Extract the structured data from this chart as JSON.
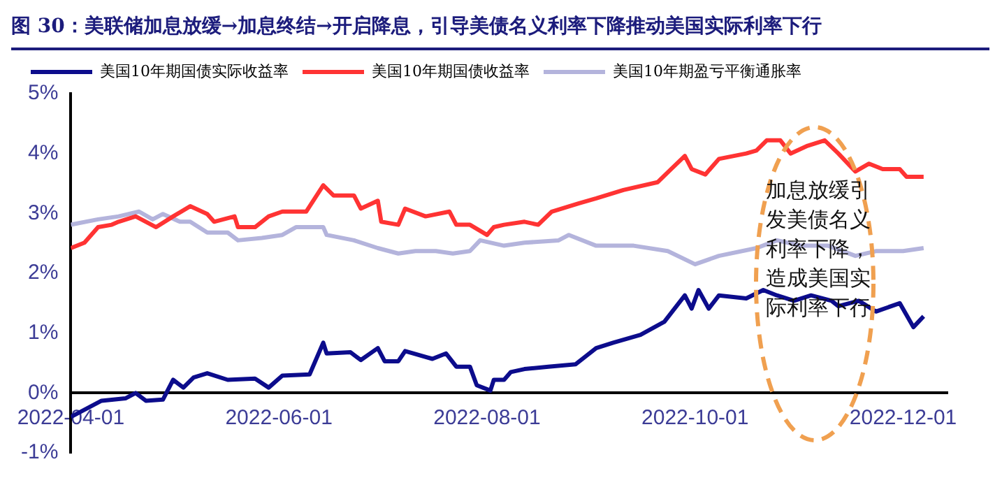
{
  "chart_data": {
    "type": "line",
    "title": "图 30：美联储加息放缓→加息终结→开启降息，引导美债名义利率下降推动美国实际利率下行",
    "xlim": [
      "2022-04-01",
      "2022-12-14"
    ],
    "xticks": [
      "2022-04-01",
      "2022-06-01",
      "2022-08-01",
      "2022-10-01",
      "2022-12-01"
    ],
    "ylim": [
      -1,
      5
    ],
    "yticks": [
      {
        "value": -1,
        "label": "-1%"
      },
      {
        "value": 0,
        "label": "0%"
      },
      {
        "value": 1,
        "label": "1%"
      },
      {
        "value": 2,
        "label": "2%"
      },
      {
        "value": 3,
        "label": "3%"
      },
      {
        "value": 4,
        "label": "4%"
      },
      {
        "value": 5,
        "label": "5%"
      }
    ],
    "grid": false,
    "legend": "top left",
    "marker": "none",
    "line_style": "solid",
    "annotations": [
      "加息放缓引发美债名义利率下降，造成美国实际利率下行"
    ],
    "series": [
      {
        "name": "美国10年期国债实际收益率",
        "color": "#0c0c8c",
        "x": [
          "2022-04-01",
          "2022-04-07",
          "2022-04-10",
          "2022-04-17",
          "2022-04-20",
          "2022-04-23",
          "2022-04-28",
          "2022-05-01",
          "2022-05-04",
          "2022-05-07",
          "2022-05-11",
          "2022-05-17",
          "2022-05-25",
          "2022-05-29",
          "2022-06-02",
          "2022-06-10",
          "2022-06-14",
          "2022-06-15",
          "2022-06-22",
          "2022-06-25",
          "2022-06-30",
          "2022-07-02",
          "2022-07-06",
          "2022-07-08",
          "2022-07-16",
          "2022-07-20",
          "2022-07-23",
          "2022-07-27",
          "2022-07-29",
          "2022-08-02",
          "2022-08-03",
          "2022-08-06",
          "2022-08-08",
          "2022-08-12",
          "2022-08-19",
          "2022-08-27",
          "2022-09-02",
          "2022-09-07",
          "2022-09-15",
          "2022-09-22",
          "2022-09-28",
          "2022-09-30",
          "2022-10-02",
          "2022-10-05",
          "2022-10-08",
          "2022-10-16",
          "2022-10-21",
          "2022-10-25",
          "2022-10-30",
          "2022-11-04",
          "2022-11-10",
          "2022-11-12",
          "2022-11-18",
          "2022-11-23",
          "2022-11-30",
          "2022-12-04",
          "2022-12-07"
        ],
        "values": [
          -0.4,
          -0.22,
          -0.13,
          -0.09,
          0,
          -0.13,
          -0.11,
          0.22,
          0.09,
          0.26,
          0.33,
          0.22,
          0.24,
          0.09,
          0.29,
          0.31,
          0.84,
          0.66,
          0.68,
          0.55,
          0.75,
          0.53,
          0.53,
          0.7,
          0.57,
          0.66,
          0.44,
          0.44,
          0.13,
          0.04,
          0.22,
          0.22,
          0.35,
          0.4,
          0.44,
          0.48,
          0.75,
          0.84,
          0.97,
          1.19,
          1.63,
          1.41,
          1.72,
          1.41,
          1.63,
          1.58,
          1.72,
          1.63,
          1.54,
          1.63,
          1.54,
          1.45,
          1.54,
          1.36,
          1.5,
          1.1,
          1.28
        ]
      },
      {
        "name": "美国10年期国债收益率",
        "color": "#ff3333",
        "x": [
          "2022-04-01",
          "2022-04-05",
          "2022-04-09",
          "2022-04-13",
          "2022-04-15",
          "2022-04-20",
          "2022-04-26",
          "2022-05-01",
          "2022-05-06",
          "2022-05-11",
          "2022-05-13",
          "2022-05-19",
          "2022-05-20",
          "2022-05-25",
          "2022-05-29",
          "2022-06-02",
          "2022-06-09",
          "2022-06-14",
          "2022-06-17",
          "2022-06-23",
          "2022-06-25",
          "2022-06-30",
          "2022-07-01",
          "2022-07-06",
          "2022-07-08",
          "2022-07-14",
          "2022-07-21",
          "2022-07-23",
          "2022-07-27",
          "2022-08-01",
          "2022-08-03",
          "2022-08-06",
          "2022-08-12",
          "2022-08-16",
          "2022-08-20",
          "2022-08-28",
          "2022-09-02",
          "2022-09-10",
          "2022-09-20",
          "2022-09-24",
          "2022-09-28",
          "2022-09-30",
          "2022-10-04",
          "2022-10-08",
          "2022-10-16",
          "2022-10-19",
          "2022-10-22",
          "2022-10-26",
          "2022-10-29",
          "2022-11-03",
          "2022-11-08",
          "2022-11-12",
          "2022-11-17",
          "2022-11-21",
          "2022-11-25",
          "2022-11-30",
          "2022-12-02",
          "2022-12-07"
        ],
        "values": [
          2.42,
          2.51,
          2.77,
          2.81,
          2.86,
          2.95,
          2.77,
          2.95,
          3.12,
          2.99,
          2.86,
          2.95,
          2.77,
          2.77,
          2.95,
          3.03,
          3.03,
          3.47,
          3.3,
          3.3,
          3.08,
          3.21,
          2.86,
          2.81,
          3.08,
          2.95,
          3.03,
          2.81,
          2.81,
          2.64,
          2.77,
          2.81,
          2.86,
          2.81,
          3.03,
          3.17,
          3.25,
          3.39,
          3.52,
          3.74,
          3.96,
          3.74,
          3.65,
          3.91,
          4.0,
          4.05,
          4.22,
          4.22,
          4.0,
          4.13,
          4.22,
          4.0,
          3.7,
          3.83,
          3.74,
          3.74,
          3.61,
          3.61
        ]
      },
      {
        "name": "美国10年期盈亏平衡通胀率",
        "color": "#b4b4dc",
        "x": [
          "2022-04-01",
          "2022-04-09",
          "2022-04-15",
          "2022-04-21",
          "2022-04-25",
          "2022-04-28",
          "2022-05-03",
          "2022-05-06",
          "2022-05-11",
          "2022-05-17",
          "2022-05-20",
          "2022-05-27",
          "2022-06-02",
          "2022-06-06",
          "2022-06-14",
          "2022-06-15",
          "2022-06-23",
          "2022-06-30",
          "2022-07-06",
          "2022-07-11",
          "2022-07-17",
          "2022-07-22",
          "2022-07-27",
          "2022-07-30",
          "2022-08-06",
          "2022-08-12",
          "2022-08-22",
          "2022-08-25",
          "2022-09-02",
          "2022-09-13",
          "2022-09-23",
          "2022-10-01",
          "2022-10-08",
          "2022-10-19",
          "2022-10-25",
          "2022-11-01",
          "2022-11-09",
          "2022-11-17",
          "2022-11-23",
          "2022-12-01",
          "2022-12-07"
        ],
        "values": [
          2.81,
          2.9,
          2.95,
          3.03,
          2.9,
          2.99,
          2.86,
          2.86,
          2.68,
          2.68,
          2.55,
          2.59,
          2.64,
          2.77,
          2.77,
          2.64,
          2.55,
          2.42,
          2.33,
          2.37,
          2.37,
          2.33,
          2.37,
          2.55,
          2.46,
          2.51,
          2.55,
          2.64,
          2.46,
          2.46,
          2.37,
          2.15,
          2.29,
          2.42,
          2.55,
          2.46,
          2.46,
          2.29,
          2.37,
          2.37,
          2.42
        ]
      }
    ]
  }
}
